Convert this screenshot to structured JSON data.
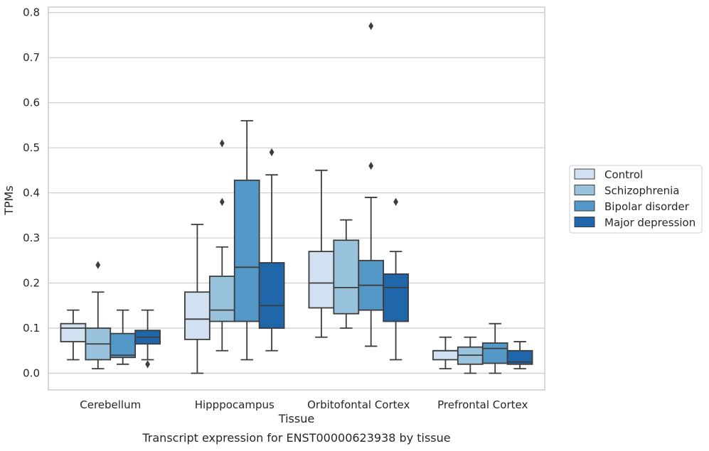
{
  "chart_data": {
    "type": "box",
    "xlabel": "Tissue",
    "ylabel": "TPMs",
    "caption": "Transcript expression for ENST00000623938 by tissue",
    "ylim": [
      -0.037,
      0.812
    ],
    "yticks": [
      "0.0",
      "0.1",
      "0.2",
      "0.3",
      "0.4",
      "0.5",
      "0.6",
      "0.7",
      "0.8"
    ],
    "grid": "horizontal",
    "legend_position": "right",
    "categories": [
      "Cerebellum",
      "Hipppocampus",
      "Orbitofontal Cortex",
      "Prefrontal Cortex"
    ],
    "series": [
      {
        "name": "Control",
        "color": "#d1e1f1",
        "boxes": [
          {
            "whisker_low": 0.03,
            "q1": 0.07,
            "median": 0.1,
            "q3": 0.11,
            "whisker_high": 0.14,
            "outliers": []
          },
          {
            "whisker_low": 0.0,
            "q1": 0.075,
            "median": 0.12,
            "q3": 0.18,
            "whisker_high": 0.33,
            "outliers": []
          },
          {
            "whisker_low": 0.08,
            "q1": 0.145,
            "median": 0.2,
            "q3": 0.27,
            "whisker_high": 0.45,
            "outliers": []
          },
          {
            "whisker_low": 0.01,
            "q1": 0.03,
            "median": 0.05,
            "q3": 0.05,
            "whisker_high": 0.08,
            "outliers": []
          }
        ]
      },
      {
        "name": "Schizophrenia",
        "color": "#99c3dc",
        "boxes": [
          {
            "whisker_low": 0.01,
            "q1": 0.03,
            "median": 0.065,
            "q3": 0.1,
            "whisker_high": 0.18,
            "outliers": [
              0.24
            ]
          },
          {
            "whisker_low": 0.05,
            "q1": 0.115,
            "median": 0.14,
            "q3": 0.215,
            "whisker_high": 0.28,
            "outliers": [
              0.38,
              0.51
            ]
          },
          {
            "whisker_low": 0.1,
            "q1": 0.132,
            "median": 0.19,
            "q3": 0.295,
            "whisker_high": 0.34,
            "outliers": []
          },
          {
            "whisker_low": 0.0,
            "q1": 0.02,
            "median": 0.04,
            "q3": 0.058,
            "whisker_high": 0.08,
            "outliers": []
          }
        ]
      },
      {
        "name": "Bipolar disorder",
        "color": "#5498c7",
        "boxes": [
          {
            "whisker_low": 0.02,
            "q1": 0.035,
            "median": 0.04,
            "q3": 0.088,
            "whisker_high": 0.14,
            "outliers": []
          },
          {
            "whisker_low": 0.03,
            "q1": 0.115,
            "median": 0.235,
            "q3": 0.428,
            "whisker_high": 0.56,
            "outliers": []
          },
          {
            "whisker_low": 0.06,
            "q1": 0.14,
            "median": 0.195,
            "q3": 0.25,
            "whisker_high": 0.39,
            "outliers": [
              0.46,
              0.77
            ]
          },
          {
            "whisker_low": 0.0,
            "q1": 0.022,
            "median": 0.055,
            "q3": 0.067,
            "whisker_high": 0.11,
            "outliers": []
          }
        ]
      },
      {
        "name": "Major depression",
        "color": "#2066ab",
        "boxes": [
          {
            "whisker_low": 0.03,
            "q1": 0.065,
            "median": 0.08,
            "q3": 0.095,
            "whisker_high": 0.14,
            "outliers": [
              0.02
            ]
          },
          {
            "whisker_low": 0.05,
            "q1": 0.1,
            "median": 0.15,
            "q3": 0.245,
            "whisker_high": 0.44,
            "outliers": [
              0.49
            ]
          },
          {
            "whisker_low": 0.03,
            "q1": 0.115,
            "median": 0.19,
            "q3": 0.22,
            "whisker_high": 0.27,
            "outliers": [
              0.38
            ]
          },
          {
            "whisker_low": 0.01,
            "q1": 0.02,
            "median": 0.025,
            "q3": 0.05,
            "whisker_high": 0.07,
            "outliers": []
          }
        ]
      }
    ]
  }
}
